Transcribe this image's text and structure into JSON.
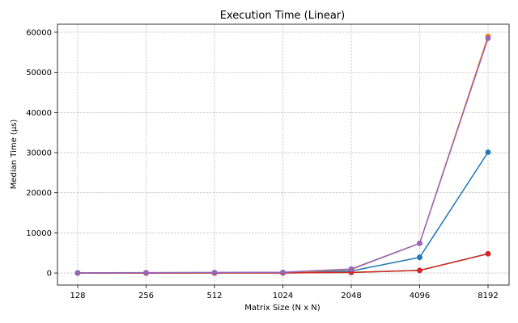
{
  "chart_data": {
    "type": "line",
    "title": "Execution Time (Linear)",
    "xlabel": "Matrix Size (N x N)",
    "ylabel": "Median Time (µs)",
    "categories": [
      "128",
      "256",
      "512",
      "1024",
      "2048",
      "4096",
      "8192"
    ],
    "yticks": [
      "0",
      "10000",
      "20000",
      "30000",
      "40000",
      "50000",
      "60000"
    ],
    "ylim": [
      -3000,
      62000
    ],
    "grid": true,
    "series": [
      {
        "color": "#1f77b4",
        "values": [
          10,
          20,
          40,
          100,
          500,
          3900,
          30100
        ]
      },
      {
        "color": "#ff7f0e",
        "values": [
          5,
          10,
          20,
          60,
          900,
          7400,
          59000
        ]
      },
      {
        "color": "#2ca02c",
        "values": [
          3,
          5,
          10,
          30,
          150,
          650,
          4800
        ]
      },
      {
        "color": "#d62728",
        "values": [
          3,
          5,
          10,
          30,
          150,
          650,
          4800
        ]
      },
      {
        "color": "#9467bd",
        "values": [
          50,
          100,
          150,
          200,
          1000,
          7400,
          58500
        ]
      }
    ]
  }
}
